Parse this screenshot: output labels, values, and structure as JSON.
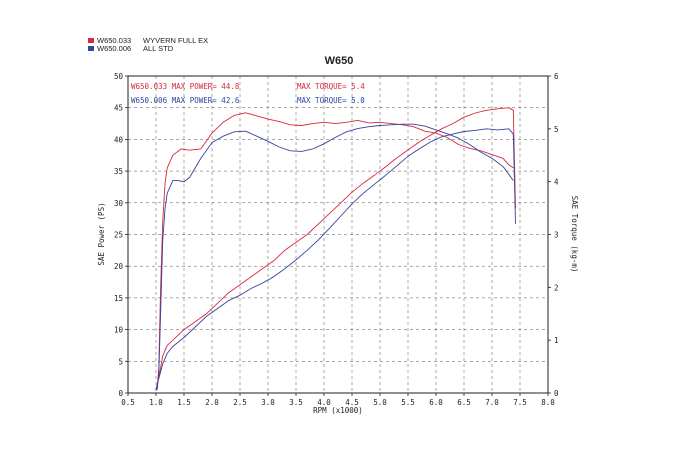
{
  "chart_data": {
    "type": "line",
    "title": "W650",
    "xlabel": "RPM (x1000)",
    "ylabel_left": "SAE Power (PS)",
    "ylabel_right": "SAE Torque (kg-m)",
    "xlim": [
      0.5,
      8.0
    ],
    "xticks": [
      "0.5",
      "1.0",
      "1.5",
      "2.0",
      "2.5",
      "3.0",
      "3.5",
      "4.0",
      "4.5",
      "5.0",
      "5.5",
      "6.0",
      "6.5",
      "7.0",
      "7.5",
      "8.0"
    ],
    "ylim_left": [
      0,
      50
    ],
    "yticks_left": [
      "0",
      "5",
      "10",
      "15",
      "20",
      "25",
      "30",
      "35",
      "40",
      "45",
      "50"
    ],
    "ylim_right": [
      0,
      6
    ],
    "yticks_right": [
      "0",
      "1",
      "2",
      "3",
      "4",
      "5",
      "6"
    ],
    "grid": true,
    "legend": [
      {
        "code": "W650.033",
        "name": "WYVERN FULL EX",
        "color": "#d8283c"
      },
      {
        "code": "W650.006",
        "name": "ALL STD",
        "color": "#3444a0"
      }
    ],
    "annotations": [
      {
        "text": "W650.033  MAX POWER= 44.8",
        "color": "#d8283c"
      },
      {
        "text": "MAX TORQUE= 5.4",
        "color": "#d8283c"
      },
      {
        "text": "W650.006  MAX POWER= 42.6",
        "color": "#3444a0"
      },
      {
        "text": "MAX TORQUE= 5.0",
        "color": "#3444a0"
      }
    ],
    "series": [
      {
        "code": "W650.033",
        "metric": "power",
        "axis": "left",
        "color": "#d8283c",
        "points": [
          [
            1.02,
            0.5
          ],
          [
            1.05,
            4
          ],
          [
            1.08,
            16
          ],
          [
            1.12,
            27
          ],
          [
            1.16,
            33
          ],
          [
            1.2,
            35.5
          ],
          [
            1.3,
            37.5
          ],
          [
            1.45,
            38.5
          ],
          [
            1.6,
            38.3
          ],
          [
            1.8,
            38.5
          ],
          [
            2.0,
            41
          ],
          [
            2.2,
            42.7
          ],
          [
            2.4,
            43.8
          ],
          [
            2.6,
            44.2
          ],
          [
            2.8,
            43.7
          ],
          [
            3.0,
            43.2
          ],
          [
            3.2,
            42.8
          ],
          [
            3.4,
            42.3
          ],
          [
            3.6,
            42.2
          ],
          [
            3.8,
            42.5
          ],
          [
            4.0,
            42.7
          ],
          [
            4.2,
            42.5
          ],
          [
            4.4,
            42.7
          ],
          [
            4.6,
            43
          ],
          [
            4.8,
            42.6
          ],
          [
            5.0,
            42.7
          ],
          [
            5.2,
            42.5
          ],
          [
            5.4,
            42.3
          ],
          [
            5.6,
            42
          ],
          [
            5.8,
            41.3
          ],
          [
            6.0,
            41
          ],
          [
            6.2,
            40.3
          ],
          [
            6.4,
            39.2
          ],
          [
            6.6,
            38.6
          ],
          [
            6.8,
            38.2
          ],
          [
            7.0,
            37.6
          ],
          [
            7.2,
            37
          ],
          [
            7.3,
            36
          ],
          [
            7.38,
            35.5
          ]
        ]
      },
      {
        "code": "W650.006",
        "metric": "power",
        "axis": "left",
        "color": "#3444a0",
        "points": [
          [
            1.02,
            0.5
          ],
          [
            1.05,
            3
          ],
          [
            1.08,
            12
          ],
          [
            1.12,
            24
          ],
          [
            1.16,
            29
          ],
          [
            1.2,
            31.5
          ],
          [
            1.3,
            33.5
          ],
          [
            1.4,
            33.5
          ],
          [
            1.5,
            33.3
          ],
          [
            1.6,
            34
          ],
          [
            1.8,
            37
          ],
          [
            2.0,
            39.5
          ],
          [
            2.2,
            40.5
          ],
          [
            2.4,
            41.2
          ],
          [
            2.6,
            41.3
          ],
          [
            2.8,
            40.5
          ],
          [
            3.0,
            39.7
          ],
          [
            3.2,
            38.8
          ],
          [
            3.4,
            38.2
          ],
          [
            3.6,
            38.1
          ],
          [
            3.8,
            38.5
          ],
          [
            4.0,
            39.3
          ],
          [
            4.2,
            40.3
          ],
          [
            4.4,
            41.2
          ],
          [
            4.6,
            41.7
          ],
          [
            4.8,
            42
          ],
          [
            5.0,
            42.2
          ],
          [
            5.2,
            42.3
          ],
          [
            5.4,
            42.4
          ],
          [
            5.6,
            42.4
          ],
          [
            5.8,
            42.1
          ],
          [
            6.0,
            41.5
          ],
          [
            6.2,
            40.9
          ],
          [
            6.4,
            40.2
          ],
          [
            6.6,
            39.2
          ],
          [
            6.8,
            38
          ],
          [
            7.0,
            37
          ],
          [
            7.2,
            35.7
          ],
          [
            7.3,
            34.5
          ],
          [
            7.38,
            33.5
          ]
        ]
      },
      {
        "code": "W650.033",
        "metric": "torque",
        "axis": "right",
        "color": "#d8283c",
        "points": [
          [
            1.0,
            0.05
          ],
          [
            1.03,
            0.2
          ],
          [
            1.07,
            0.4
          ],
          [
            1.12,
            0.7
          ],
          [
            1.2,
            0.9
          ],
          [
            1.3,
            1.0
          ],
          [
            1.5,
            1.2
          ],
          [
            1.7,
            1.35
          ],
          [
            1.9,
            1.5
          ],
          [
            2.1,
            1.7
          ],
          [
            2.3,
            1.9
          ],
          [
            2.5,
            2.05
          ],
          [
            2.7,
            2.2
          ],
          [
            2.9,
            2.35
          ],
          [
            3.1,
            2.5
          ],
          [
            3.3,
            2.7
          ],
          [
            3.5,
            2.85
          ],
          [
            3.7,
            3.0
          ],
          [
            3.9,
            3.2
          ],
          [
            4.1,
            3.4
          ],
          [
            4.3,
            3.6
          ],
          [
            4.5,
            3.8
          ],
          [
            4.7,
            3.97
          ],
          [
            4.9,
            4.12
          ],
          [
            5.1,
            4.28
          ],
          [
            5.3,
            4.45
          ],
          [
            5.5,
            4.6
          ],
          [
            5.7,
            4.75
          ],
          [
            5.9,
            4.88
          ],
          [
            6.1,
            5.0
          ],
          [
            6.3,
            5.1
          ],
          [
            6.5,
            5.22
          ],
          [
            6.7,
            5.3
          ],
          [
            6.9,
            5.35
          ],
          [
            7.1,
            5.38
          ],
          [
            7.3,
            5.4
          ],
          [
            7.38,
            5.35
          ],
          [
            7.42,
            3.5
          ]
        ]
      },
      {
        "code": "W650.006",
        "metric": "torque",
        "axis": "right",
        "color": "#3444a0",
        "points": [
          [
            1.0,
            0.05
          ],
          [
            1.03,
            0.2
          ],
          [
            1.07,
            0.35
          ],
          [
            1.12,
            0.55
          ],
          [
            1.2,
            0.75
          ],
          [
            1.3,
            0.88
          ],
          [
            1.5,
            1.05
          ],
          [
            1.7,
            1.25
          ],
          [
            1.9,
            1.45
          ],
          [
            2.1,
            1.6
          ],
          [
            2.3,
            1.75
          ],
          [
            2.5,
            1.85
          ],
          [
            2.7,
            1.98
          ],
          [
            2.9,
            2.08
          ],
          [
            3.1,
            2.2
          ],
          [
            3.3,
            2.35
          ],
          [
            3.5,
            2.52
          ],
          [
            3.7,
            2.7
          ],
          [
            3.9,
            2.9
          ],
          [
            4.1,
            3.12
          ],
          [
            4.3,
            3.35
          ],
          [
            4.5,
            3.58
          ],
          [
            4.7,
            3.78
          ],
          [
            4.9,
            3.95
          ],
          [
            5.1,
            4.12
          ],
          [
            5.3,
            4.3
          ],
          [
            5.5,
            4.48
          ],
          [
            5.7,
            4.62
          ],
          [
            5.9,
            4.75
          ],
          [
            6.1,
            4.85
          ],
          [
            6.3,
            4.9
          ],
          [
            6.5,
            4.95
          ],
          [
            6.7,
            4.97
          ],
          [
            6.9,
            5.0
          ],
          [
            7.1,
            4.98
          ],
          [
            7.3,
            5.0
          ],
          [
            7.38,
            4.9
          ],
          [
            7.42,
            3.2
          ]
        ]
      }
    ]
  }
}
